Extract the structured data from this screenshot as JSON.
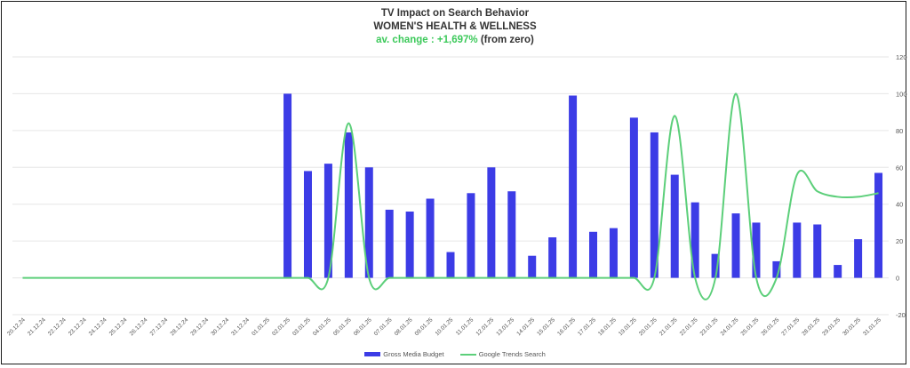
{
  "chart_data": {
    "type": "bar",
    "title": "TV Impact on Search Behavior",
    "subtitle": "WOMEN'S HEALTH & WELLNESS",
    "change_label": "av. change : +1,697%",
    "change_suffix": "(from zero)",
    "categories": [
      "20.12.24",
      "21.12.24",
      "22.12.24",
      "23.12.24",
      "24.12.24",
      "25.12.24",
      "26.12.24",
      "27.12.24",
      "28.12.24",
      "29.12.24",
      "30.12.24",
      "31.12.24",
      "01.01.25",
      "02.01.25",
      "03.01.25",
      "04.01.25",
      "05.01.25",
      "06.01.25",
      "07.01.25",
      "08.01.25",
      "09.01.25",
      "10.01.25",
      "11.01.25",
      "12.01.25",
      "13.01.25",
      "14.01.25",
      "15.01.25",
      "16.01.25",
      "17.01.25",
      "18.01.25",
      "19.01.25",
      "20.01.25",
      "21.01.25",
      "22.01.25",
      "23.01.25",
      "24.01.25",
      "25.01.25",
      "26.01.25",
      "27.01.25",
      "28.01.25",
      "29.01.25",
      "30.01.25",
      "31.01.25"
    ],
    "series": [
      {
        "name": "Gross Media Budget",
        "kind": "bar",
        "color": "#3c3ce6",
        "values": [
          0,
          0,
          0,
          0,
          0,
          0,
          0,
          0,
          0,
          0,
          0,
          0,
          0,
          100,
          58,
          62,
          79,
          60,
          37,
          36,
          43,
          14,
          46,
          60,
          47,
          12,
          22,
          99,
          25,
          27,
          87,
          79,
          56,
          41,
          13,
          35,
          30,
          9,
          30,
          29,
          7,
          21,
          57
        ]
      },
      {
        "name": "Google Trends Search",
        "kind": "line",
        "color": "#5ccf7a",
        "values": [
          0,
          0,
          0,
          0,
          0,
          0,
          0,
          0,
          0,
          0,
          0,
          0,
          0,
          0,
          0,
          0,
          84,
          0,
          0,
          0,
          0,
          0,
          0,
          0,
          0,
          0,
          0,
          0,
          0,
          0,
          0,
          0,
          88,
          0,
          0,
          100,
          0,
          0,
          56,
          47,
          44,
          44,
          46
        ]
      }
    ],
    "yaxis": {
      "min": -20,
      "max": 120,
      "step": 20,
      "position": "right"
    },
    "grid": true,
    "legend_position": "bottom-center"
  }
}
